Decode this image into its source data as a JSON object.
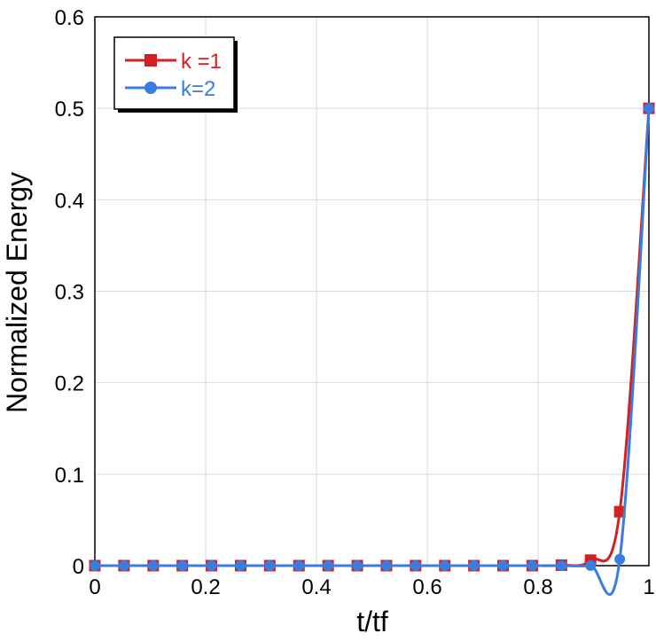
{
  "chart_data": {
    "type": "line",
    "title": "",
    "xlabel": "t/tf",
    "ylabel": "Normalized Energy",
    "xlim": [
      0,
      1
    ],
    "ylim": [
      0,
      0.6
    ],
    "xticks": [
      0,
      0.2,
      0.4,
      0.6,
      0.8,
      1
    ],
    "xtick_labels": [
      "0",
      "0.2",
      "0.4",
      "0.6",
      "0.8",
      "1"
    ],
    "yticks": [
      0,
      0.1,
      0.2,
      0.3,
      0.4,
      0.5,
      0.6
    ],
    "ytick_labels": [
      "0",
      "0.1",
      "0.2",
      "0.3",
      "0.4",
      "0.5",
      "0.6"
    ],
    "grid": true,
    "legend": "top-left",
    "series": [
      {
        "name": "k =1",
        "color": "#d42020",
        "marker": "square",
        "x": [
          0,
          0.0526,
          0.1053,
          0.1579,
          0.2105,
          0.2632,
          0.3158,
          0.3684,
          0.4211,
          0.4737,
          0.5263,
          0.5789,
          0.6316,
          0.6842,
          0.7368,
          0.7895,
          0.8421,
          0.8947,
          0.9474,
          1
        ],
        "y": [
          0,
          0,
          0,
          0,
          0,
          0,
          0,
          0,
          0,
          0,
          0,
          0,
          0,
          0,
          0,
          0,
          0.0005,
          0.006,
          0.059,
          0.5
        ]
      },
      {
        "name": "k=2",
        "color": "#3a7de0",
        "marker": "circle",
        "x": [
          0,
          0.0526,
          0.1053,
          0.1579,
          0.2105,
          0.2632,
          0.3158,
          0.3684,
          0.4211,
          0.4737,
          0.5263,
          0.5789,
          0.6316,
          0.6842,
          0.7368,
          0.7895,
          0.8421,
          0.8947,
          0.9474,
          1
        ],
        "y": [
          0,
          0,
          0,
          0,
          0,
          0,
          0,
          0,
          0,
          0,
          0,
          0,
          0,
          0,
          0,
          0,
          0,
          0.0001,
          0.007,
          0.5
        ]
      }
    ]
  }
}
